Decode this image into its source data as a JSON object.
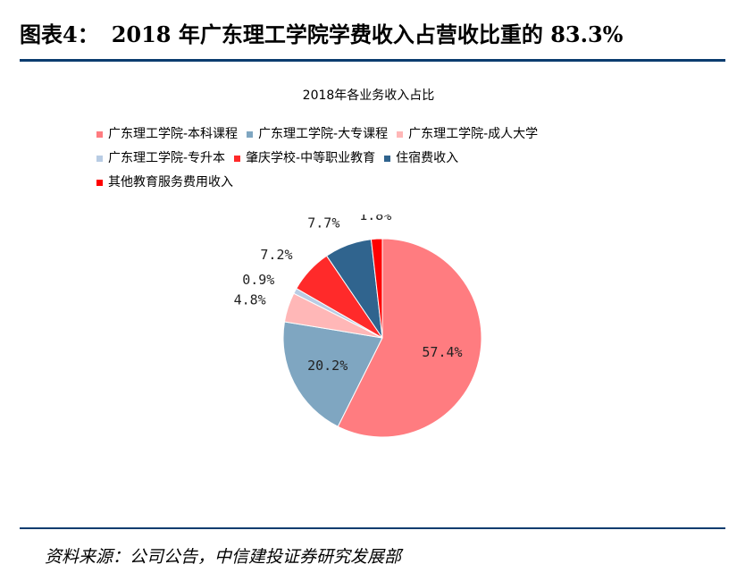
{
  "header": {
    "label": "图表4：",
    "title": "2018 年广东理工学院学费收入占营收比重的 83.3%"
  },
  "footer": {
    "source": "资料来源：公司公告，中信建投证券研究发展部"
  },
  "chart_data": {
    "type": "pie",
    "title": "2018年各业务收入占比",
    "legend_position": "top",
    "slices": [
      {
        "name": "广东理工学院-本科课程",
        "value": 57.4,
        "label": "57.4%",
        "color": "#ff7c80"
      },
      {
        "name": "广东理工学院-大专课程",
        "value": 20.2,
        "label": "20.2%",
        "color": "#7fa6c1"
      },
      {
        "name": "广东理工学院-成人大学",
        "value": 4.8,
        "label": "4.8%",
        "color": "#ffb7b7"
      },
      {
        "name": "广东理工学院-专升本",
        "value": 0.9,
        "label": "0.9%",
        "color": "#b8cce4"
      },
      {
        "name": "肇庆学校-中等职业教育",
        "value": 7.2,
        "label": "7.2%",
        "color": "#ff2a2a"
      },
      {
        "name": "住宿费收入",
        "value": 7.7,
        "label": "7.7%",
        "color": "#30648e"
      },
      {
        "name": "其他教育服务费用收入",
        "value": 1.8,
        "label": "1.8%",
        "color": "#ff0000"
      }
    ]
  }
}
